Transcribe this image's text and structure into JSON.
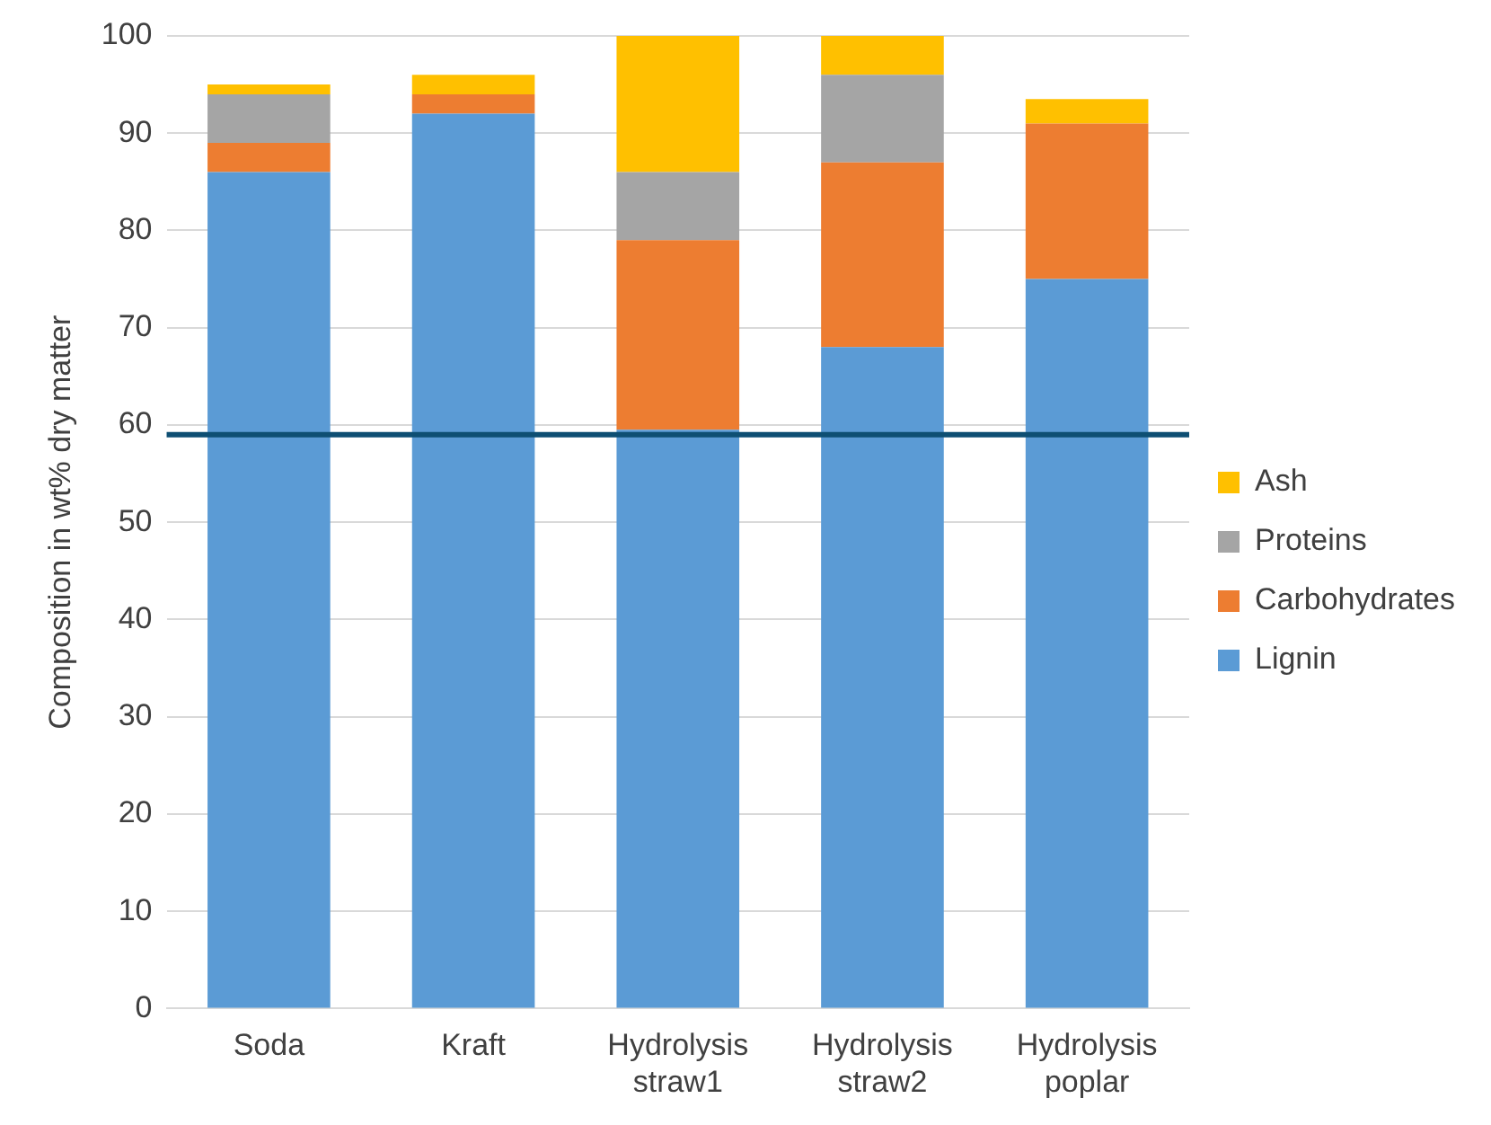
{
  "chart_data": {
    "type": "bar",
    "stacked": true,
    "ylabel": "Composition in wt% dry matter",
    "categories": [
      "Soda",
      "Kraft",
      "Hydrolysis straw1",
      "Hydrolysis straw2",
      "Hydrolysis poplar"
    ],
    "series": [
      {
        "name": "Lignin",
        "color": "#5b9bd5",
        "values": [
          86,
          92,
          59.5,
          68,
          75
        ]
      },
      {
        "name": "Carbohydrates",
        "color": "#ed7d31",
        "values": [
          3,
          2,
          19.5,
          19,
          16
        ]
      },
      {
        "name": "Proteins",
        "color": "#a5a5a5",
        "values": [
          5,
          0,
          7,
          9,
          0
        ]
      },
      {
        "name": "Ash",
        "color": "#ffc000",
        "values": [
          1,
          2,
          14,
          4,
          2.5
        ]
      }
    ],
    "ylim": [
      0,
      100
    ],
    "yticks": [
      0,
      10,
      20,
      30,
      40,
      50,
      60,
      70,
      80,
      90,
      100
    ],
    "ref_lines": [
      {
        "axis": "y",
        "value": 59,
        "color": "#0e4f73"
      }
    ],
    "grid": "y",
    "legend": "right"
  }
}
